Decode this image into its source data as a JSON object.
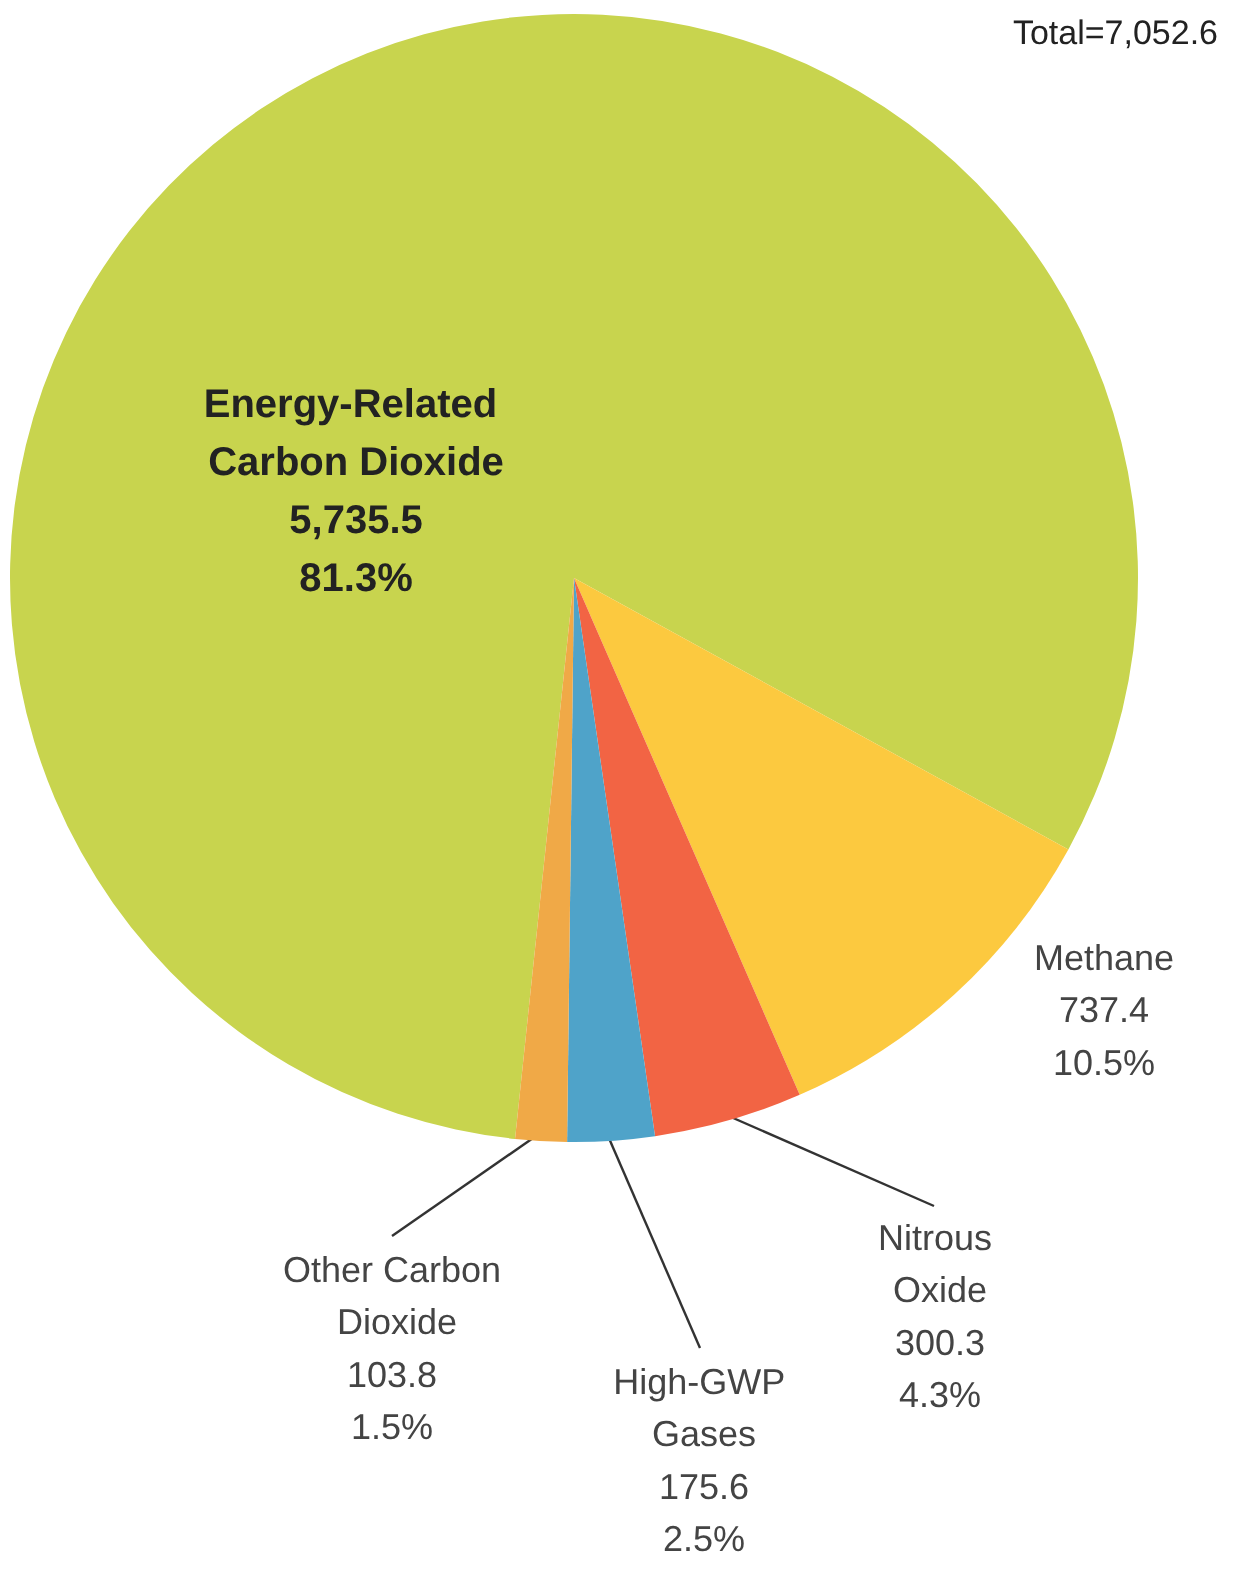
{
  "chart_data": {
    "type": "pie",
    "annotations": [
      "Total=7,052.6"
    ],
    "categories": [
      "Energy-Related Carbon Dioxide",
      "Methane",
      "Nitrous Oxide",
      "High-GWP Gases",
      "Other Carbon Dioxide"
    ],
    "values": [
      5735.5,
      737.4,
      300.3,
      175.6,
      103.8
    ],
    "value_labels": [
      "5,735.5\n81.3%",
      "737.4\n10.5%",
      "300.3\n4.3%",
      "175.6\n2.5%",
      "103.8\n1.5%"
    ],
    "colors": [
      "#c8d44e",
      "#fcc93f",
      "#f26444",
      "#4fa3c9",
      "#f0a947"
    ],
    "legend": false
  }
}
